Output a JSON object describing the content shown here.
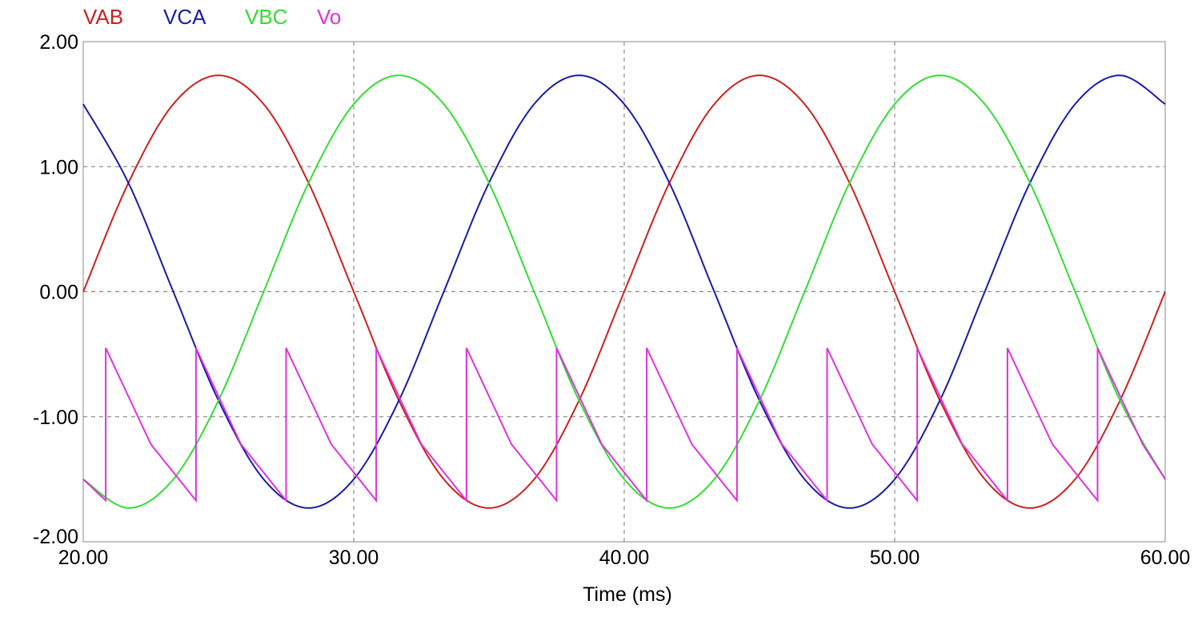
{
  "chart_data": {
    "type": "line",
    "title": "",
    "xlabel": "Time (ms)",
    "ylabel": "",
    "xlim": [
      20,
      60
    ],
    "ylim": [
      -2,
      2
    ],
    "x_ticks": [
      "20.00",
      "30.00",
      "40.00",
      "50.00",
      "60.00"
    ],
    "y_ticks": [
      "2.00",
      "1.00",
      "0.00",
      "-1.00",
      "-2.00"
    ],
    "x_tick_values": [
      20,
      30,
      40,
      50,
      60
    ],
    "y_tick_values": [
      2,
      1,
      0,
      -1,
      -2
    ],
    "grid": true,
    "legend_placement": "top-left",
    "series": [
      {
        "name": "VAB",
        "color": "#cc2020",
        "x": [
          20,
          21.67,
          23.33,
          25,
          26.67,
          28.33,
          30,
          31.67,
          33.33,
          35,
          36.67,
          38.33,
          40,
          41.67,
          43.33,
          45,
          46.67,
          48.33,
          50,
          51.67,
          53.33,
          55,
          56.67,
          58.33,
          60
        ],
        "y": [
          0,
          0.87,
          1.5,
          1.73,
          1.5,
          0.87,
          0,
          -0.87,
          -1.5,
          -1.73,
          -1.5,
          -0.87,
          0,
          0.87,
          1.5,
          1.73,
          1.5,
          0.87,
          0,
          -0.87,
          -1.5,
          -1.73,
          -1.5,
          -0.87,
          0
        ]
      },
      {
        "name": "VCA",
        "color": "#1a1aa8",
        "x": [
          20,
          21.67,
          23.33,
          25,
          26.67,
          28.33,
          30,
          31.67,
          33.33,
          35,
          36.67,
          38.33,
          40,
          41.67,
          43.33,
          45,
          46.67,
          48.33,
          50,
          51.67,
          53.33,
          55,
          56.67,
          58.33,
          60
        ],
        "y": [
          1.5,
          0.87,
          0,
          -0.87,
          -1.5,
          -1.73,
          -1.5,
          -0.87,
          0,
          0.87,
          1.5,
          1.73,
          1.5,
          0.87,
          0,
          -0.87,
          -1.5,
          -1.73,
          -1.5,
          -0.87,
          0,
          0.87,
          1.5,
          1.73,
          1.5
        ]
      },
      {
        "name": "VBC",
        "color": "#33dd33",
        "x": [
          20,
          21.67,
          23.33,
          25,
          26.67,
          28.33,
          30,
          31.67,
          33.33,
          35,
          36.67,
          38.33,
          40,
          41.67,
          43.33,
          45,
          46.67,
          48.33,
          50,
          51.67,
          53.33,
          55,
          56.67,
          58.33,
          60
        ],
        "y": [
          -1.5,
          -1.73,
          -1.5,
          -0.87,
          0,
          0.87,
          1.5,
          1.73,
          1.5,
          0.87,
          0,
          -0.87,
          -1.5,
          -1.73,
          -1.5,
          -0.87,
          0,
          0.87,
          1.5,
          1.73,
          1.5,
          0.87,
          0,
          -0.87,
          -1.5
        ]
      },
      {
        "name": "Vo",
        "color": "#dd33dd",
        "x": [
          20,
          20.83,
          20.83,
          22.5,
          24.17,
          24.17,
          25.83,
          27.5,
          27.5,
          29.17,
          30.83,
          30.83,
          32.5,
          34.17,
          34.17,
          35.83,
          37.5,
          37.5,
          39.17,
          40.83,
          40.83,
          42.5,
          44.17,
          44.17,
          45.83,
          47.5,
          47.5,
          49.17,
          50.83,
          50.83,
          52.5,
          54.17,
          54.17,
          55.83,
          57.5,
          57.5,
          59.17,
          60
        ],
        "y": [
          -1.5,
          -1.67,
          -0.45,
          -1.22,
          -1.67,
          -0.45,
          -1.22,
          -1.67,
          -0.45,
          -1.22,
          -1.67,
          -0.45,
          -1.22,
          -1.67,
          -0.45,
          -1.22,
          -1.67,
          -0.45,
          -1.22,
          -1.67,
          -0.45,
          -1.22,
          -1.67,
          -0.45,
          -1.22,
          -1.67,
          -0.45,
          -1.22,
          -1.67,
          -0.45,
          -1.22,
          -1.67,
          -0.45,
          -1.22,
          -1.67,
          -0.45,
          -1.22,
          -1.5
        ]
      }
    ]
  }
}
